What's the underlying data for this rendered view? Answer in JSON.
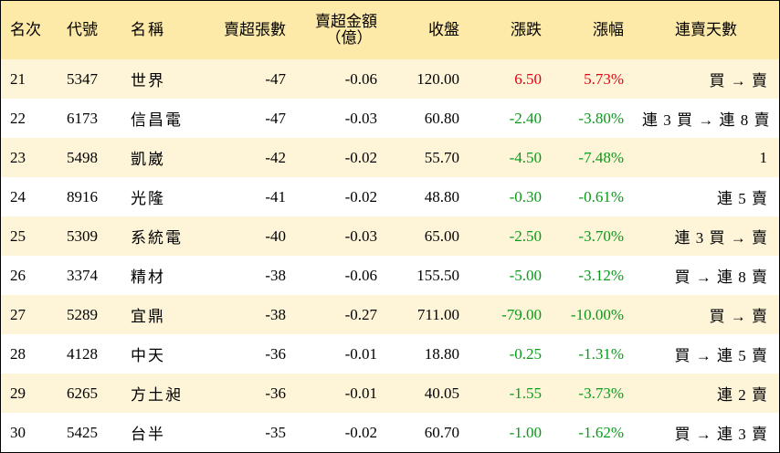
{
  "headers": {
    "rank": "名次",
    "code": "代號",
    "name": "名稱",
    "sell_over_shares": "賣超張數",
    "sell_over_amount_line1": "賣超金額",
    "sell_over_amount_line2": "（億）",
    "close": "收盤",
    "change": "漲跌",
    "change_pct": "漲幅",
    "consecutive_days": "連賣天數"
  },
  "colors": {
    "header_bg": "#fde9a8",
    "stripe_bg": "#fef5d9",
    "up": "#e4000f",
    "down": "#0a9a1a"
  },
  "rows": [
    {
      "rank": "21",
      "code": "5347",
      "name": "世界",
      "shares": "-47",
      "amount": "-0.06",
      "close": "120.00",
      "change": "6.50",
      "pct": "5.73%",
      "dir": "up",
      "days": "買 → 賣"
    },
    {
      "rank": "22",
      "code": "6173",
      "name": "信昌電",
      "shares": "-47",
      "amount": "-0.03",
      "close": "60.80",
      "change": "-2.40",
      "pct": "-3.80%",
      "dir": "down",
      "days": "連 3 買 → 連 8 賣"
    },
    {
      "rank": "23",
      "code": "5498",
      "name": "凱崴",
      "shares": "-42",
      "amount": "-0.02",
      "close": "55.70",
      "change": "-4.50",
      "pct": "-7.48%",
      "dir": "down",
      "days": "1"
    },
    {
      "rank": "24",
      "code": "8916",
      "name": "光隆",
      "shares": "-41",
      "amount": "-0.02",
      "close": "48.80",
      "change": "-0.30",
      "pct": "-0.61%",
      "dir": "down",
      "days": "連 5 賣"
    },
    {
      "rank": "25",
      "code": "5309",
      "name": "系統電",
      "shares": "-40",
      "amount": "-0.03",
      "close": "65.00",
      "change": "-2.50",
      "pct": "-3.70%",
      "dir": "down",
      "days": "連 3 買 → 賣"
    },
    {
      "rank": "26",
      "code": "3374",
      "name": "精材",
      "shares": "-38",
      "amount": "-0.06",
      "close": "155.50",
      "change": "-5.00",
      "pct": "-3.12%",
      "dir": "down",
      "days": "買 → 連 8 賣"
    },
    {
      "rank": "27",
      "code": "5289",
      "name": "宜鼎",
      "shares": "-38",
      "amount": "-0.27",
      "close": "711.00",
      "change": "-79.00",
      "pct": "-10.00%",
      "dir": "down",
      "days": "買 → 賣"
    },
    {
      "rank": "28",
      "code": "4128",
      "name": "中天",
      "shares": "-36",
      "amount": "-0.01",
      "close": "18.80",
      "change": "-0.25",
      "pct": "-1.31%",
      "dir": "down",
      "days": "買 → 連 5 賣"
    },
    {
      "rank": "29",
      "code": "6265",
      "name": "方土昶",
      "shares": "-36",
      "amount": "-0.01",
      "close": "40.05",
      "change": "-1.55",
      "pct": "-3.73%",
      "dir": "down",
      "days": "連 2 賣"
    },
    {
      "rank": "30",
      "code": "5425",
      "name": "台半",
      "shares": "-35",
      "amount": "-0.02",
      "close": "60.70",
      "change": "-1.00",
      "pct": "-1.62%",
      "dir": "down",
      "days": "買 → 連 3 賣"
    }
  ]
}
